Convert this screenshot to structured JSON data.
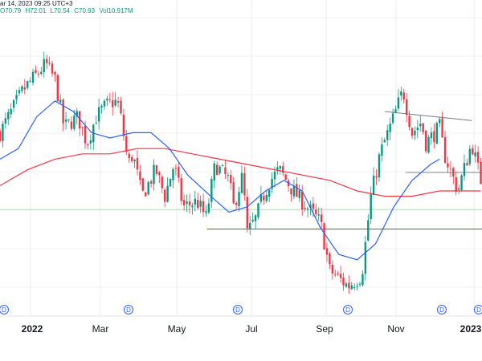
{
  "header": {
    "timestamp": "ar 14, 2023 09:25 UTC+3",
    "open": "O70.79",
    "high": "H72.01",
    "low": "L70.54",
    "close": "C70.93",
    "volume": "Vol10.917M"
  },
  "colors": {
    "up": "#089981",
    "down": "#f23645",
    "ma_fast": "#2962ff",
    "ma_slow": "#f23645",
    "grid": "#e0e3eb",
    "support": "#2962ff",
    "resistance": "#787b86",
    "baseline": "#4caf50"
  },
  "chart_data": {
    "type": "candlestick",
    "x_tick_labels": [
      "2022",
      "Mar",
      "May",
      "Jul",
      "Sep",
      "Nov",
      "2023"
    ],
    "dividend_marker_label": "D",
    "dividend_marker_count": 6,
    "price_path": [
      [
        0,
        64
      ],
      [
        5,
        72
      ],
      [
        10,
        77
      ],
      [
        12,
        74
      ],
      [
        14,
        65
      ],
      [
        17,
        67
      ],
      [
        19,
        62
      ],
      [
        21,
        67
      ],
      [
        23,
        69
      ],
      [
        25,
        70
      ],
      [
        26,
        69
      ],
      [
        28,
        58
      ],
      [
        29,
        60
      ],
      [
        31,
        52
      ],
      [
        34,
        57
      ],
      [
        36,
        52
      ],
      [
        38,
        58
      ],
      [
        40,
        50
      ],
      [
        43,
        51
      ],
      [
        45,
        48
      ],
      [
        47,
        58
      ],
      [
        50,
        55
      ],
      [
        51,
        50
      ],
      [
        53,
        56
      ],
      [
        54,
        45
      ],
      [
        56,
        48
      ],
      [
        57,
        51
      ],
      [
        59,
        55
      ],
      [
        61,
        57
      ],
      [
        64,
        53
      ],
      [
        67,
        50
      ],
      [
        70,
        47
      ],
      [
        72,
        38
      ],
      [
        76,
        35
      ],
      [
        79,
        37
      ],
      [
        81,
        52
      ],
      [
        83,
        60
      ],
      [
        86,
        67
      ],
      [
        88,
        72
      ],
      [
        90,
        64
      ],
      [
        92,
        66
      ],
      [
        93,
        62
      ],
      [
        96,
        65
      ],
      [
        97,
        60
      ],
      [
        100,
        53
      ],
      [
        103,
        62
      ],
      [
        105,
        55
      ]
    ],
    "ma_fast": [
      [
        0,
        59
      ],
      [
        4,
        61
      ],
      [
        8,
        67
      ],
      [
        12,
        70
      ],
      [
        16,
        68
      ],
      [
        20,
        64
      ],
      [
        24,
        63
      ],
      [
        29,
        64
      ],
      [
        33,
        64
      ],
      [
        37,
        61
      ],
      [
        41,
        56
      ],
      [
        46,
        52
      ],
      [
        50,
        49
      ],
      [
        54,
        50
      ],
      [
        58,
        53
      ],
      [
        62,
        55
      ],
      [
        66,
        53
      ],
      [
        70,
        46
      ],
      [
        74,
        41
      ],
      [
        78,
        40
      ],
      [
        82,
        43
      ],
      [
        86,
        50
      ],
      [
        90,
        55
      ],
      [
        94,
        58
      ],
      [
        96,
        59
      ]
    ],
    "ma_slow": [
      [
        0,
        54
      ],
      [
        6,
        57
      ],
      [
        12,
        59
      ],
      [
        18,
        60
      ],
      [
        24,
        60
      ],
      [
        30,
        61
      ],
      [
        36,
        61
      ],
      [
        42,
        60
      ],
      [
        48,
        59
      ],
      [
        54,
        58
      ],
      [
        60,
        57
      ],
      [
        66,
        56
      ],
      [
        72,
        55
      ],
      [
        78,
        53
      ],
      [
        84,
        52
      ],
      [
        90,
        52
      ],
      [
        96,
        53
      ],
      [
        105,
        53
      ]
    ],
    "support_level": 45.8,
    "baseline_level": 49.5,
    "resistance_line": [
      [
        84,
        68
      ],
      [
        96,
        66
      ]
    ],
    "legend": "none",
    "grid": true
  }
}
